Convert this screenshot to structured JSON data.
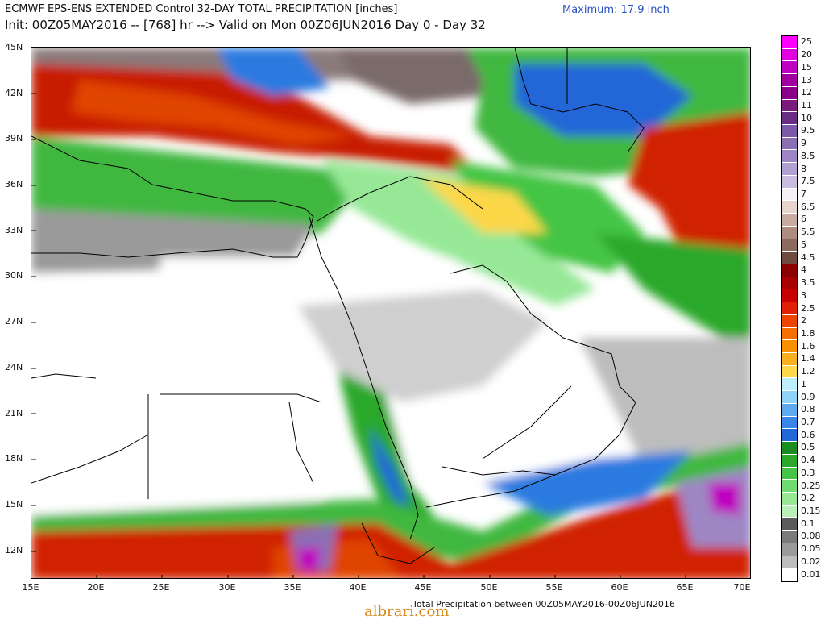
{
  "header": {
    "title_line1": "ECMWF EPS-ENS EXTENDED Control 32-DAY TOTAL PRECIPITATION [inches]",
    "title_line2": "Init: 00Z05MAY2016 -- [768] hr --> Valid on Mon 00Z06JUN2016  Day 0 - Day 32",
    "maximum": "Maximum: 17.9 inch"
  },
  "axes": {
    "lat_labels": [
      "45N",
      "42N",
      "39N",
      "36N",
      "33N",
      "30N",
      "27N",
      "24N",
      "21N",
      "18N",
      "15N",
      "12N"
    ],
    "lon_labels": [
      "15E",
      "20E",
      "25E",
      "30E",
      "35E",
      "40E",
      "45E",
      "50E",
      "55E",
      "60E",
      "65E",
      "70E"
    ]
  },
  "colorbar": {
    "labels": [
      "25",
      "20",
      "15",
      "13",
      "12",
      "11",
      "10",
      "9.5",
      "9",
      "8.5",
      "8",
      "7.5",
      "7",
      "6.5",
      "6",
      "5.5",
      "5",
      "4.5",
      "4",
      "3.5",
      "3",
      "2.5",
      "2",
      "1.8",
      "1.6",
      "1.4",
      "1.2",
      "1",
      "0.9",
      "0.8",
      "0.7",
      "0.6",
      "0.5",
      "0.4",
      "0.3",
      "0.25",
      "0.2",
      "0.15",
      "0.1",
      "0.08",
      "0.05",
      "0.02",
      "0.01"
    ],
    "colors": [
      "#ff00ff",
      "#e000e0",
      "#c000c0",
      "#a000a0",
      "#8b008b",
      "#7b1a7b",
      "#6a2c82",
      "#7a5aa8",
      "#8a6fb5",
      "#9e86c4",
      "#b3a0d2",
      "#c8bce0",
      "#f5f0f5",
      "#e6d5cc",
      "#c9aaa0",
      "#b08c80",
      "#8c6a5e",
      "#6e4a40",
      "#8b0000",
      "#a80000",
      "#c80000",
      "#e02000",
      "#ee4400",
      "#f57000",
      "#f99000",
      "#fbb020",
      "#fcd84a",
      "#bfefff",
      "#8ed2f5",
      "#5eaaf0",
      "#3a86e6",
      "#2266d8",
      "#1b8c22",
      "#2ca82c",
      "#44c544",
      "#6edc6e",
      "#96e896",
      "#b9f0b9",
      "#5a5a5a",
      "#7a7a7a",
      "#9a9a9a",
      "#bdbdbd",
      "#ffffff"
    ]
  },
  "footer": {
    "text": "Total Precipitation between 00Z05MAY2016-00Z06JUN2016",
    "watermark": "albrari.com"
  }
}
